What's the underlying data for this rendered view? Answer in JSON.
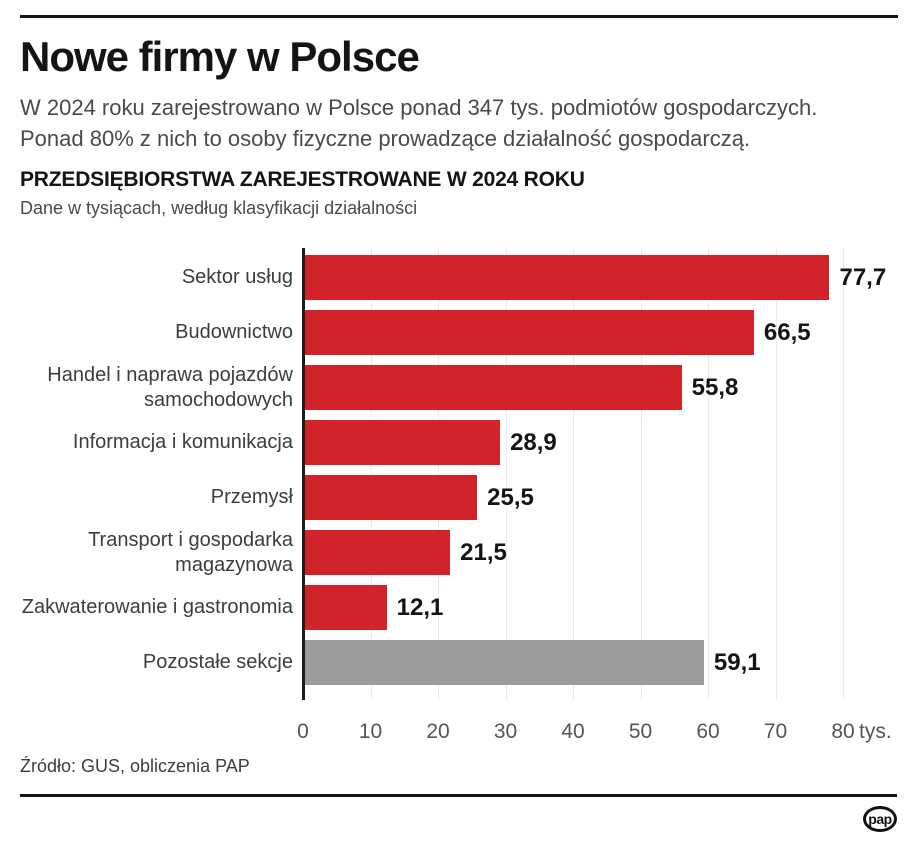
{
  "page": {
    "title": "Nowe firmy w Polsce",
    "subtitle_line1": "W 2024 roku zarejestrowano w Polsce ponad 347 tys. podmiotów gospodarczych.",
    "subtitle_line2": "Ponad 80% z nich to osoby fizyczne prowadzące działalność gospodarczą.",
    "source": "Źródło: GUS, obliczenia PAP",
    "logo_text": "pap"
  },
  "colors": {
    "bar_red": "#d2232a",
    "bar_gray": "#9d9c9a",
    "axis": "#1d1d1b",
    "grid": "#ebebeb",
    "text_dark": "#141413",
    "text_gray": "#4a4a49",
    "tick_gray": "#555554"
  },
  "chart_data": {
    "type": "bar",
    "orientation": "horizontal",
    "title": "PRZEDSIĘBIORSTWA ZAREJESTROWANE W 2024 ROKU",
    "subtitle": "Dane w tysiącach, według klasyfikacji działalności",
    "unit": "tys.",
    "categories": [
      "Sektor usług",
      "Budownictwo",
      "Handel i naprawa pojazdów samochodowych",
      "Informacja i komunikacja",
      "Przemysł",
      "Transport i gospodarka magazynowa",
      "Zakwaterowanie i gastronomia",
      "Pozostałe sekcje"
    ],
    "category_lines": [
      [
        "Sektor usług"
      ],
      [
        "Budownictwo"
      ],
      [
        "Handel i naprawa pojazdów",
        "samochodowych"
      ],
      [
        "Informacja i komunikacja"
      ],
      [
        "Przemysł"
      ],
      [
        "Transport i gospodarka",
        "magazynowa"
      ],
      [
        "Zakwaterowanie i gastronomia"
      ],
      [
        "Pozostałe sekcje"
      ]
    ],
    "values": [
      77.7,
      66.5,
      55.8,
      28.9,
      25.5,
      21.5,
      12.1,
      59.1
    ],
    "value_labels": [
      "77,7",
      "66,5",
      "55,8",
      "28,9",
      "25,5",
      "21,5",
      "12,1",
      "59,1"
    ],
    "bar_color_keys": [
      "red",
      "red",
      "red",
      "red",
      "red",
      "red",
      "red",
      "gray"
    ],
    "x_ticks": [
      0,
      10,
      20,
      30,
      40,
      50,
      60,
      70,
      80
    ],
    "x_tick_labels": [
      "0",
      "10",
      "20",
      "30",
      "40",
      "50",
      "60",
      "70",
      "80"
    ],
    "x_tick_unit": "tys.",
    "xlim": [
      0,
      80
    ],
    "grid": true,
    "legend": false
  }
}
